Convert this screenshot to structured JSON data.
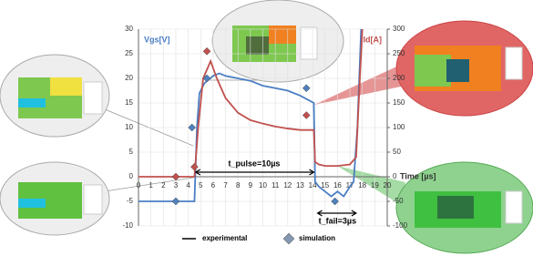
{
  "chart_data": {
    "type": "line",
    "y_label": "Vgs[V]",
    "y2_label": "Id[A]",
    "x_label": "Time [µs]",
    "xlim": [
      0,
      20
    ],
    "xticks": [
      0,
      1,
      2,
      3,
      4,
      5,
      6,
      7,
      8,
      9,
      10,
      11,
      12,
      13,
      14,
      15,
      16,
      17,
      18,
      19,
      20
    ],
    "ylim": [
      -10,
      30
    ],
    "yticks": [
      -10,
      -5,
      0,
      5,
      10,
      15,
      20,
      25,
      30
    ],
    "y2lim": [
      -100,
      300
    ],
    "y2ticks": [
      -100,
      -50,
      0,
      50,
      100,
      150,
      200,
      250,
      300
    ],
    "grid": true,
    "series": [
      {
        "kind": "line",
        "color": "#4a7ec4",
        "x": [
          0,
          4.5,
          4.7,
          4.9,
          5.3,
          6,
          6.5,
          7,
          8,
          9,
          10,
          11,
          12,
          13,
          14.1,
          14.2,
          14.5,
          15,
          15.5,
          16,
          16.5,
          17,
          17.3,
          17.6,
          17.9
        ],
        "values": [
          -5,
          -5,
          10,
          17,
          19,
          20.5,
          21,
          20.5,
          20,
          19.5,
          18.5,
          18,
          17.5,
          16.5,
          15,
          -1,
          -2,
          -3,
          -4,
          -3,
          -4,
          -2,
          -1,
          10,
          30
        ]
      },
      {
        "kind": "line",
        "axis": "y2",
        "color": "#c0504d",
        "x": [
          0,
          4.5,
          4.8,
          5.2,
          5.8,
          6.3,
          7,
          8,
          9,
          10,
          11,
          12,
          13,
          14.1,
          14.2,
          14.5,
          15,
          16,
          17,
          17.5,
          17.8,
          18
        ],
        "values": [
          0,
          0,
          100,
          200,
          235,
          200,
          160,
          130,
          115,
          108,
          102,
          98,
          95,
          95,
          30,
          25,
          22,
          22,
          25,
          40,
          200,
          300
        ]
      },
      {
        "kind": "diamond",
        "color": "#4f81bd",
        "x": [
          3,
          4.3,
          5.5,
          13.5,
          15.8
        ],
        "values": [
          -5,
          10,
          20,
          18,
          -5
        ]
      },
      {
        "kind": "diamond",
        "axis": "y2",
        "color": "#c0504d",
        "x": [
          3,
          4.5,
          5.5,
          13.5
        ],
        "values": [
          0,
          20,
          255,
          125
        ]
      }
    ],
    "annotations": [
      "t_pulse=10µs",
      "t_fail=3µs"
    ],
    "legend": [
      "experimental",
      "simulation"
    ]
  }
}
